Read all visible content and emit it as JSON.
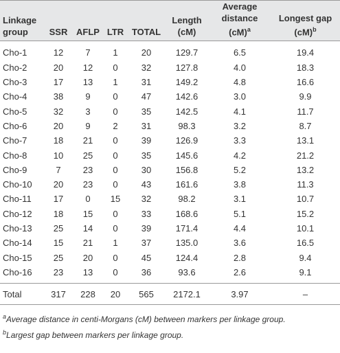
{
  "table": {
    "headers": [
      {
        "text": "Linkage group"
      },
      {
        "text": "SSR"
      },
      {
        "text": "AFLP"
      },
      {
        "text": "LTR"
      },
      {
        "text": "TOTAL"
      },
      {
        "text": "Length (cM)"
      },
      {
        "text": "Average distance (cM)",
        "sup": "a"
      },
      {
        "text": "Longest gap (cM)",
        "sup": "b"
      }
    ],
    "rows": [
      [
        "Cho-1",
        "12",
        "7",
        "1",
        "20",
        "129.7",
        "6.5",
        "19.4"
      ],
      [
        "Cho-2",
        "20",
        "12",
        "0",
        "32",
        "127.8",
        "4.0",
        "18.3"
      ],
      [
        "Cho-3",
        "17",
        "13",
        "1",
        "31",
        "149.2",
        "4.8",
        "16.6"
      ],
      [
        "Cho-4",
        "38",
        "9",
        "0",
        "47",
        "142.6",
        "3.0",
        "9.9"
      ],
      [
        "Cho-5",
        "32",
        "3",
        "0",
        "35",
        "142.5",
        "4.1",
        "11.7"
      ],
      [
        "Cho-6",
        "20",
        "9",
        "2",
        "31",
        "98.3",
        "3.2",
        "8.7"
      ],
      [
        "Cho-7",
        "18",
        "21",
        "0",
        "39",
        "126.9",
        "3.3",
        "13.1"
      ],
      [
        "Cho-8",
        "10",
        "25",
        "0",
        "35",
        "145.6",
        "4.2",
        "21.2"
      ],
      [
        "Cho-9",
        "7",
        "23",
        "0",
        "30",
        "156.8",
        "5.2",
        "13.2"
      ],
      [
        "Cho-10",
        "20",
        "23",
        "0",
        "43",
        "161.6",
        "3.8",
        "11.3"
      ],
      [
        "Cho-11",
        "17",
        "0",
        "15",
        "32",
        "98.2",
        "3.1",
        "10.7"
      ],
      [
        "Cho-12",
        "18",
        "15",
        "0",
        "33",
        "168.6",
        "5.1",
        "15.2"
      ],
      [
        "Cho-13",
        "25",
        "14",
        "0",
        "39",
        "171.4",
        "4.4",
        "10.1"
      ],
      [
        "Cho-14",
        "15",
        "21",
        "1",
        "37",
        "135.0",
        "3.6",
        "16.5"
      ],
      [
        "Cho-15",
        "25",
        "20",
        "0",
        "45",
        "124.4",
        "2.8",
        "9.4"
      ],
      [
        "Cho-16",
        "23",
        "13",
        "0",
        "36",
        "93.6",
        "2.6",
        "9.1"
      ]
    ],
    "total": [
      "Total",
      "317",
      "228",
      "20",
      "565",
      "2172.1",
      "3.97",
      "–"
    ],
    "footnotes": [
      {
        "mark": "a",
        "text": "Average distance in centi-Morgans (cM) between markers per linkage group."
      },
      {
        "mark": "b",
        "text": "Largest gap between markers per linkage group."
      }
    ]
  }
}
